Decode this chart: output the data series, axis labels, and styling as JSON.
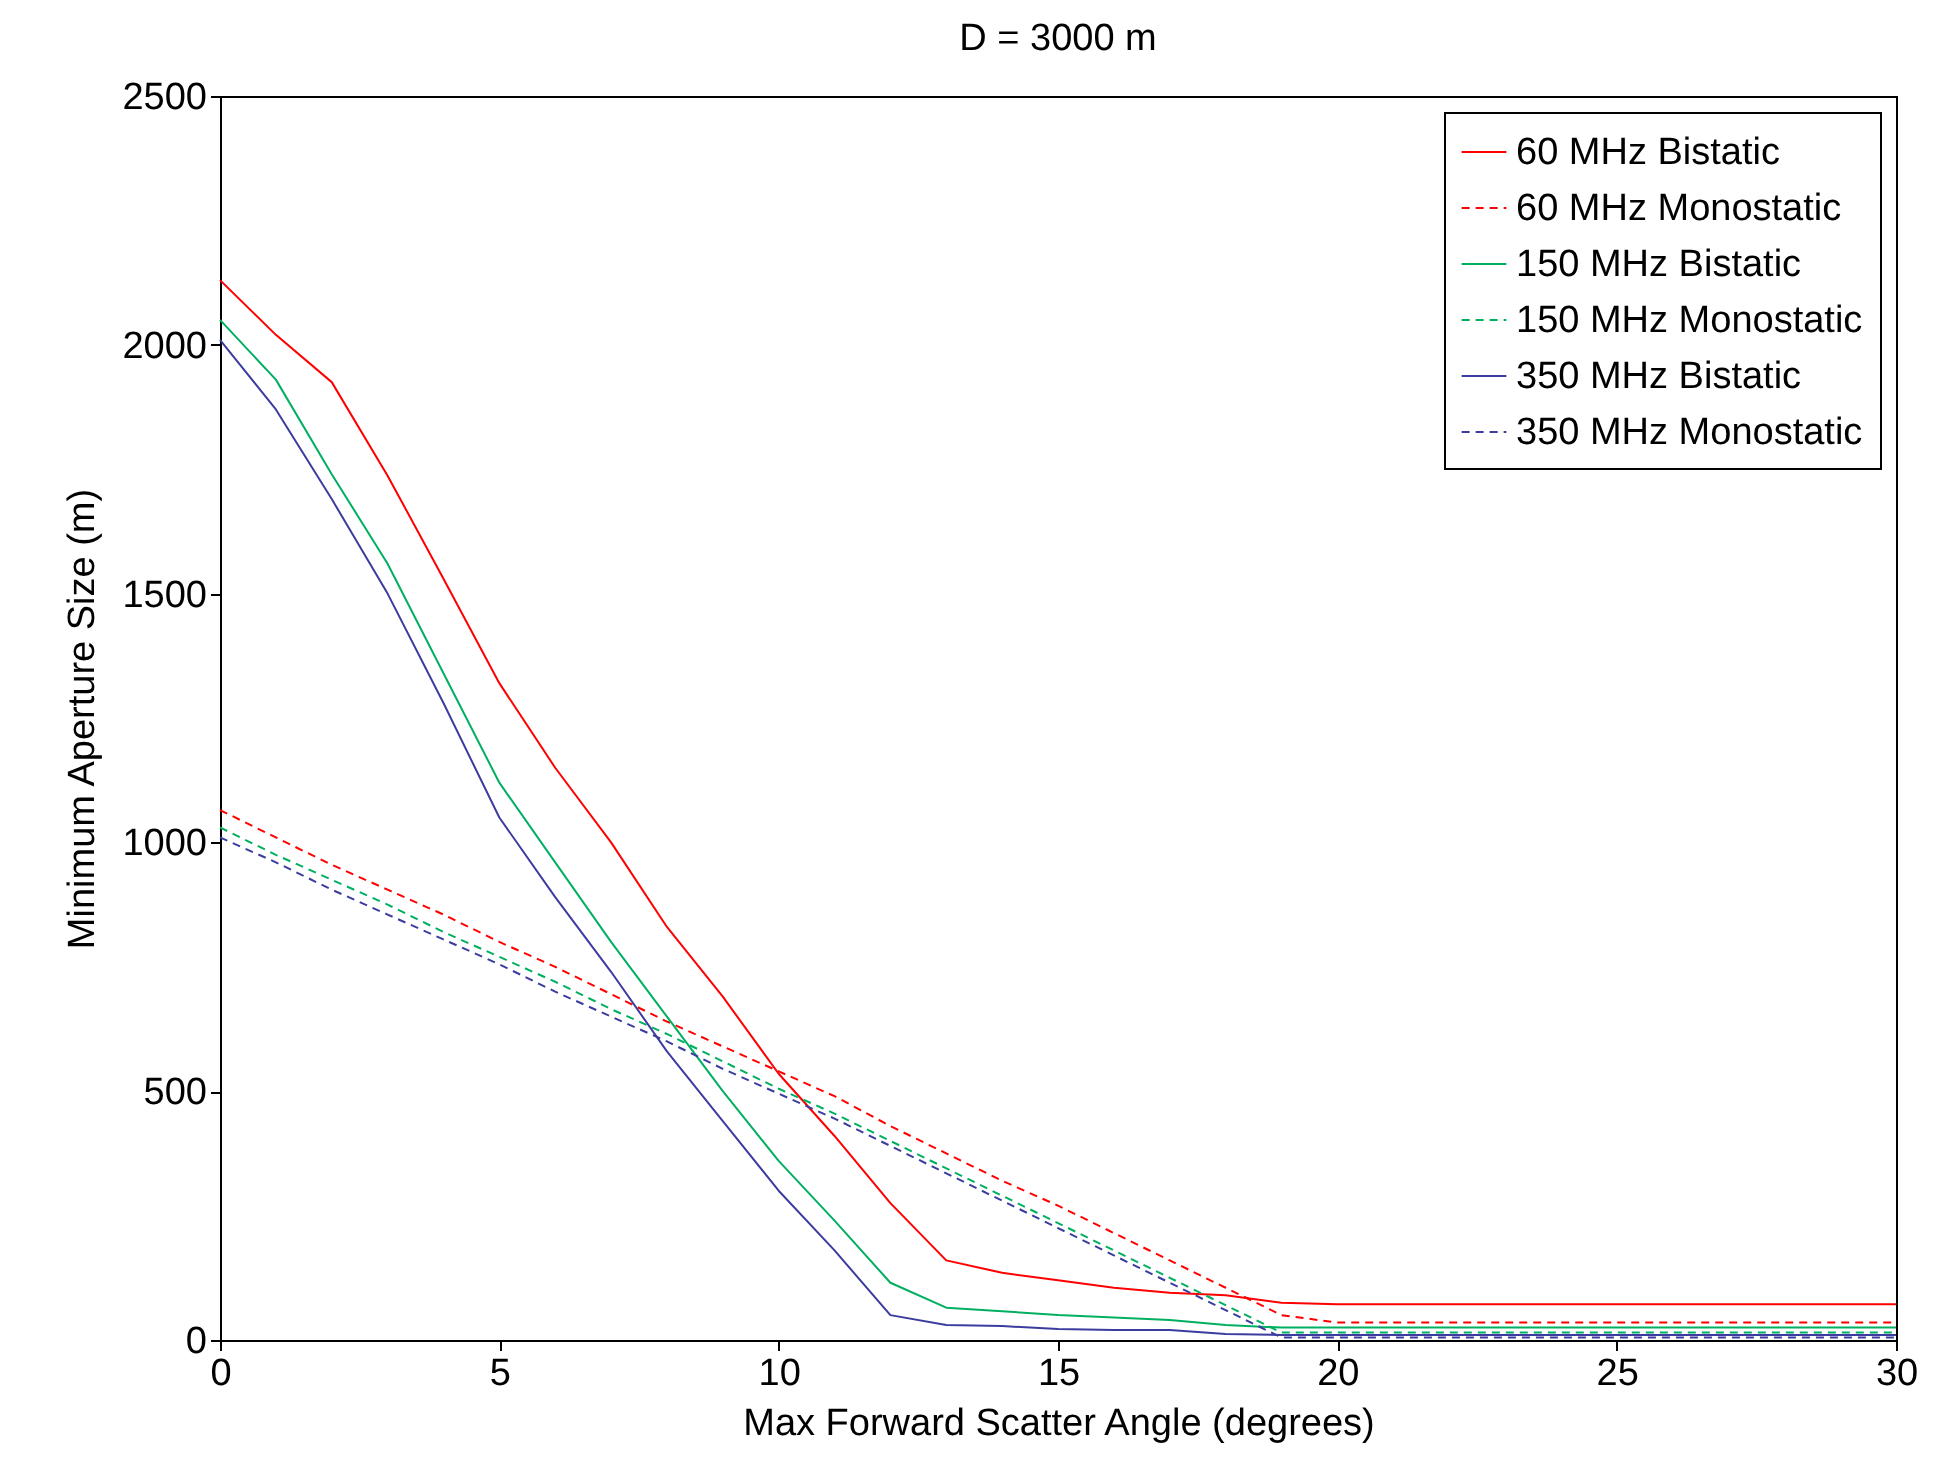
{
  "chart_data": {
    "type": "line",
    "title": "D = 3000 m",
    "xlabel": "Max Forward Scatter Angle (degrees)",
    "ylabel": "Minimum Aperture Size (m)",
    "x": [
      0,
      1,
      2,
      3,
      4,
      5,
      6,
      7,
      8,
      9,
      10,
      11,
      12,
      13,
      14,
      15,
      16,
      17,
      18,
      19,
      20,
      21,
      22,
      23,
      24,
      25,
      26,
      27,
      28,
      29,
      30
    ],
    "series": [
      {
        "name": "60 MHz Bistatic",
        "color": "#ff0000",
        "line_style": "solid",
        "values": [
          2130,
          2020,
          1925,
          1737,
          1530,
          1320,
          1150,
          1000,
          830,
          690,
          535,
          410,
          275,
          160,
          135,
          120,
          105,
          95,
          90,
          75,
          72,
          72,
          72,
          72,
          72,
          72,
          72,
          72,
          72,
          72,
          72
        ]
      },
      {
        "name": "60 MHz Monostatic",
        "color": "#ff0000",
        "line_style": "dashed",
        "values": [
          1065,
          1010,
          955,
          905,
          855,
          800,
          750,
          695,
          640,
          590,
          540,
          490,
          430,
          375,
          320,
          270,
          215,
          160,
          105,
          50,
          35,
          35,
          35,
          35,
          35,
          35,
          35,
          35,
          35,
          35,
          35
        ]
      },
      {
        "name": "150 MHz Bistatic",
        "color": "#00b060",
        "line_style": "solid",
        "values": [
          2050,
          1930,
          1740,
          1560,
          1340,
          1120,
          960,
          800,
          650,
          500,
          360,
          240,
          115,
          65,
          58,
          50,
          45,
          40,
          30,
          25,
          25,
          25,
          25,
          25,
          25,
          25,
          25,
          25,
          25,
          25,
          25
        ]
      },
      {
        "name": "150 MHz Monostatic",
        "color": "#00b060",
        "line_style": "dashed",
        "values": [
          1030,
          975,
          925,
          875,
          820,
          770,
          720,
          665,
          615,
          560,
          505,
          455,
          400,
          345,
          290,
          235,
          180,
          125,
          70,
          15,
          15,
          15,
          15,
          15,
          15,
          15,
          15,
          15,
          15,
          15,
          15
        ]
      },
      {
        "name": "350 MHz Bistatic",
        "color": "#3c3ca0",
        "line_style": "solid",
        "values": [
          2010,
          1870,
          1690,
          1500,
          1280,
          1050,
          890,
          740,
          580,
          440,
          300,
          180,
          50,
          30,
          28,
          22,
          20,
          20,
          12,
          10,
          10,
          10,
          10,
          10,
          10,
          10,
          10,
          10,
          10,
          10,
          10
        ]
      },
      {
        "name": "350 MHz Monostatic",
        "color": "#3c3ca0",
        "line_style": "dashed",
        "values": [
          1010,
          960,
          905,
          855,
          805,
          755,
          700,
          650,
          600,
          545,
          495,
          445,
          390,
          335,
          280,
          225,
          170,
          115,
          60,
          5,
          5,
          5,
          5,
          5,
          5,
          5,
          5,
          5,
          5,
          5,
          5
        ]
      }
    ],
    "xlim": [
      0,
      30
    ],
    "xticks": [
      0,
      5,
      10,
      15,
      20,
      25,
      30
    ],
    "ylim": [
      0,
      2500
    ],
    "yticks": [
      0,
      500,
      1000,
      1500,
      2000,
      2500
    ],
    "grid": false,
    "legend": "top right"
  }
}
